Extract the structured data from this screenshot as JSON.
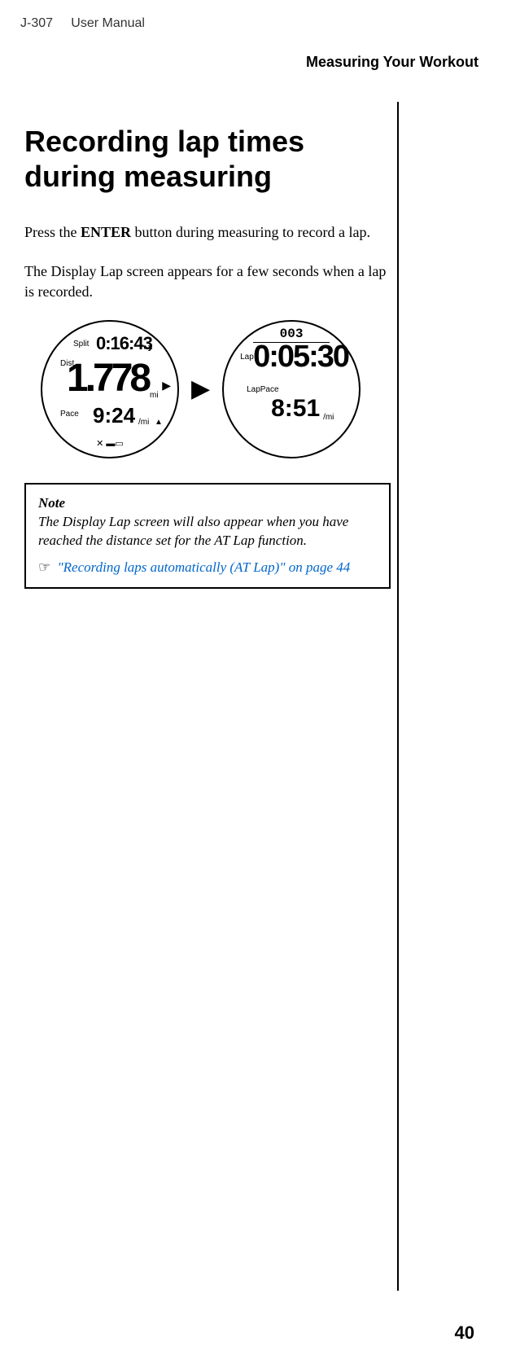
{
  "header": {
    "product": "J-307",
    "doc_type": "User Manual",
    "section": "Measuring Your Workout"
  },
  "content": {
    "heading": "Recording lap times during measuring",
    "para1_prefix": "Press the ",
    "para1_bold": "ENTER",
    "para1_suffix": " button during measuring to record a lap.",
    "para2": "The Display Lap screen appears for a few seconds when a lap is recorded."
  },
  "watch1": {
    "split_label": "Split",
    "split_time": "0:16:43",
    "dist_label": "Dist.",
    "dist_value": "1.778",
    "dist_unit": "mi",
    "pace_label": "Pace",
    "pace_value": "9:24",
    "pace_unit": "/mi",
    "run_icon": "➔",
    "side_arrow": "▶",
    "pace_arrow": "▲",
    "bottom_icons": "✕ ▬▭"
  },
  "arrow": "▶",
  "watch2": {
    "lap_number": "003",
    "lap_label": "Lap",
    "lap_time": "0:05:30",
    "lappace_label": "LapPace",
    "lappace_value": "8:51",
    "lappace_unit": "/mi"
  },
  "note": {
    "title": "Note",
    "body": "The Display Lap screen will also appear when you have reached the distance set for the AT Lap function.",
    "link_icon": "☞",
    "link_text": "\"Recording laps automatically (AT Lap)\" on page 44"
  },
  "page_number": "40"
}
